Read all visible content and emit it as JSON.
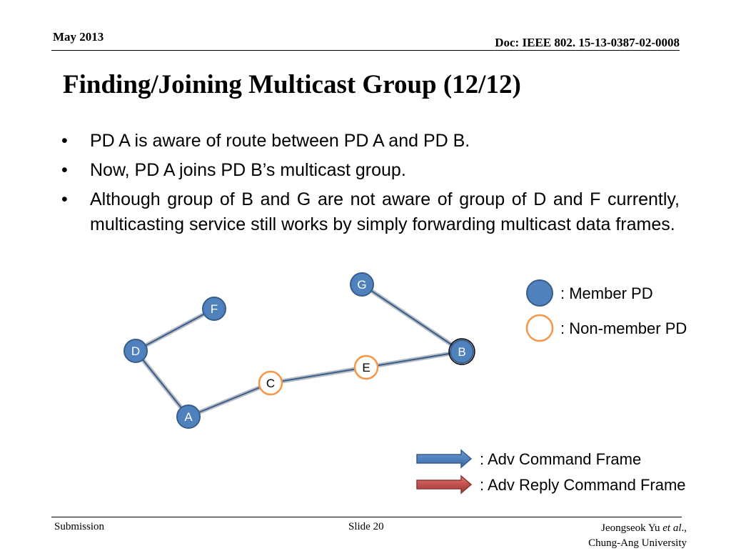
{
  "header": {
    "date": "May 2013",
    "doc_id": "Doc: IEEE 802. 15-13-0387-02-0008"
  },
  "title": "Finding/Joining Multicast Group (12/12)",
  "bullets": [
    "PD A is aware of route between PD A and PD B.",
    "Now, PD A joins PD B’s multicast group.",
    "Although group of B and G are not aware of group of D and F currently, multicasting service still works by simply forwarding multicast data frames."
  ],
  "diagram": {
    "nodes": [
      {
        "id": "G",
        "type": "member"
      },
      {
        "id": "F",
        "type": "member"
      },
      {
        "id": "D",
        "type": "member"
      },
      {
        "id": "B",
        "type": "member"
      },
      {
        "id": "E",
        "type": "non-member"
      },
      {
        "id": "C",
        "type": "non-member"
      },
      {
        "id": "A",
        "type": "member"
      }
    ],
    "links": [
      [
        "F",
        "D"
      ],
      [
        "D",
        "A"
      ],
      [
        "A",
        "C"
      ],
      [
        "C",
        "E"
      ],
      [
        "E",
        "B"
      ],
      [
        "B",
        "G"
      ]
    ],
    "colors": {
      "member_fill": "#4f81bd",
      "member_stroke": "#385d8a",
      "non_member_stroke": "#f79646",
      "adv_arrow": "#4f81bd",
      "reply_arrow": "#c0504d"
    }
  },
  "legend": {
    "member": ": Member PD",
    "non_member": ": Non-member PD",
    "adv": ": Adv Command Frame",
    "reply": ": Adv Reply Command Frame"
  },
  "footer": {
    "left": "Submission",
    "center": "Slide 20",
    "author": "Jeongseok Yu",
    "author_suffix": "et al",
    "author_punct": ".,",
    "affiliation": "Chung-Ang University"
  }
}
